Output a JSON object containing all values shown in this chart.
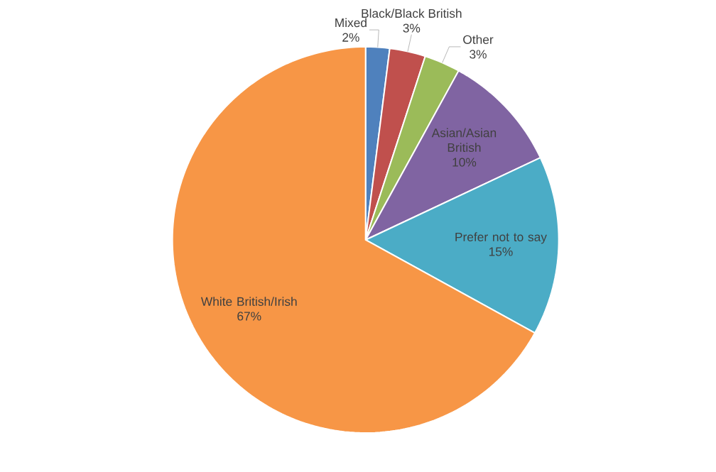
{
  "chart_data": {
    "type": "pie",
    "categories": [
      "Mixed",
      "Black/Black British",
      "Other",
      "Asian/Asian British",
      "Prefer not to say",
      "White British/Irish"
    ],
    "values": [
      2,
      3,
      3,
      10,
      15,
      67
    ],
    "value_labels": [
      "2%",
      "3%",
      "3%",
      "10%",
      "15%",
      "67%"
    ],
    "colors": [
      "#4f81bd",
      "#c0504d",
      "#9bbb59",
      "#8064a2",
      "#4bacc6",
      "#f79646"
    ]
  }
}
